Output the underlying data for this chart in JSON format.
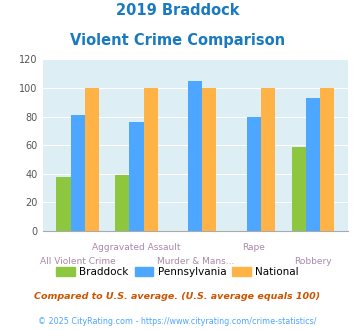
{
  "title_line1": "2019 Braddock",
  "title_line2": "Violent Crime Comparison",
  "categories": [
    "All Violent Crime",
    "Aggravated Assault",
    "Murder & Mans...",
    "Rape",
    "Robbery"
  ],
  "tick_top": [
    "",
    "Aggravated Assault",
    "",
    "Rape",
    ""
  ],
  "tick_bottom": [
    "All Violent Crime",
    "",
    "Murder & Mans...",
    "",
    "Robbery"
  ],
  "braddock": [
    38,
    39,
    0,
    0,
    59
  ],
  "pennsylvania": [
    81,
    76,
    105,
    80,
    93
  ],
  "national": [
    100,
    100,
    100,
    100,
    100
  ],
  "color_braddock": "#8dc63f",
  "color_pennsylvania": "#4da6ff",
  "color_national": "#ffb347",
  "ylim": [
    0,
    120
  ],
  "yticks": [
    0,
    20,
    40,
    60,
    80,
    100,
    120
  ],
  "plot_bg": "#ddeef5",
  "bg_color": "#ffffff",
  "title_color": "#1a7abf",
  "legend_labels": [
    "Braddock",
    "Pennsylvania",
    "National"
  ],
  "footnote1": "Compared to U.S. average. (U.S. average equals 100)",
  "footnote2": "© 2025 CityRating.com - https://www.cityrating.com/crime-statistics/",
  "footnote1_color": "#cc5500",
  "footnote2_color": "#4da6ff",
  "tick_color": "#aa88aa"
}
